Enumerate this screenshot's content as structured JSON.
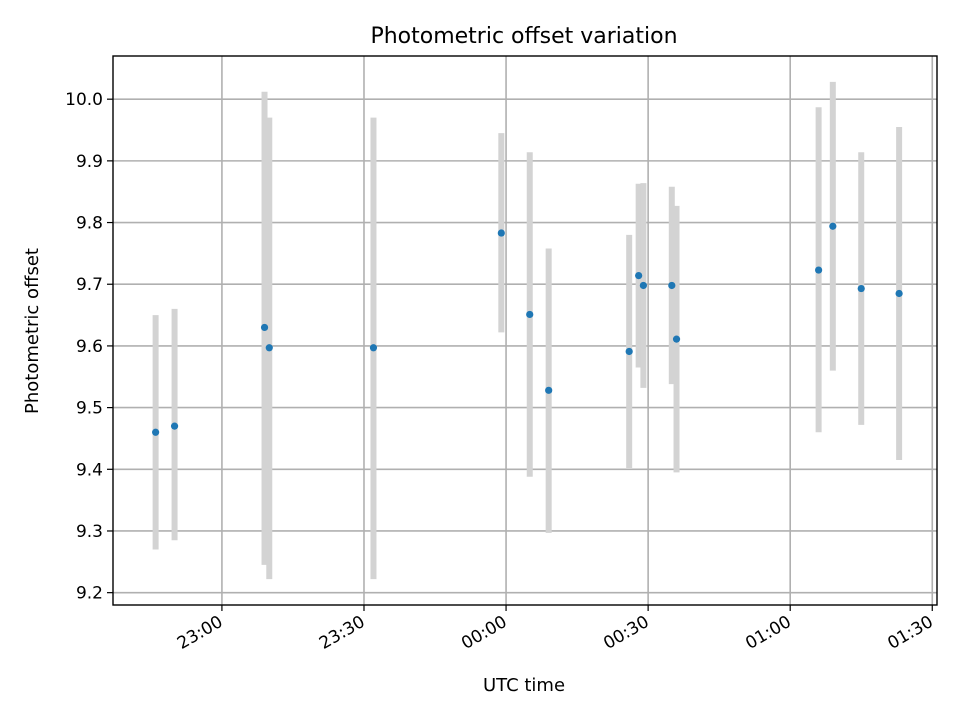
{
  "chart_data": {
    "type": "scatter",
    "title": "Photometric offset variation",
    "xlabel": "UTC time",
    "ylabel": "Photometric offset",
    "x_unit": "UTC time (clock, spanning midnight)",
    "xlim": [
      "22:37",
      "01:31"
    ],
    "ylim": [
      9.18,
      10.07
    ],
    "x_ticks": [
      "23:00",
      "23:30",
      "00:00",
      "00:30",
      "01:00",
      "01:30"
    ],
    "y_ticks": [
      "9.2",
      "9.3",
      "9.4",
      "9.5",
      "9.6",
      "9.7",
      "9.8",
      "9.9",
      "10.0"
    ],
    "grid": true,
    "marker_color": "#1f77b4",
    "errorbar_color": "#d3d3d3",
    "points": [
      {
        "t": "22:46",
        "y": 9.46,
        "low": 9.27,
        "high": 9.65
      },
      {
        "t": "22:50",
        "y": 9.47,
        "low": 9.285,
        "high": 9.66
      },
      {
        "t": "23:09",
        "y": 9.63,
        "low": 9.245,
        "high": 10.012
      },
      {
        "t": "23:10",
        "y": 9.597,
        "low": 9.222,
        "high": 9.97
      },
      {
        "t": "23:32",
        "y": 9.597,
        "low": 9.222,
        "high": 9.97
      },
      {
        "t": "23:59",
        "y": 9.783,
        "low": 9.622,
        "high": 9.945
      },
      {
        "t": "00:05",
        "y": 9.651,
        "low": 9.388,
        "high": 9.914
      },
      {
        "t": "00:09",
        "y": 9.528,
        "low": 9.297,
        "high": 9.758
      },
      {
        "t": "00:26",
        "y": 9.591,
        "low": 9.402,
        "high": 9.78
      },
      {
        "t": "00:28",
        "y": 9.714,
        "low": 9.565,
        "high": 9.863
      },
      {
        "t": "00:29",
        "y": 9.698,
        "low": 9.532,
        "high": 9.864
      },
      {
        "t": "00:35",
        "y": 9.698,
        "low": 9.538,
        "high": 9.858
      },
      {
        "t": "00:36",
        "y": 9.611,
        "low": 9.395,
        "high": 9.827
      },
      {
        "t": "01:06",
        "y": 9.723,
        "low": 9.46,
        "high": 9.987
      },
      {
        "t": "01:09",
        "y": 9.794,
        "low": 9.56,
        "high": 10.028
      },
      {
        "t": "01:15",
        "y": 9.693,
        "low": 9.472,
        "high": 9.914
      },
      {
        "t": "01:23",
        "y": 9.685,
        "low": 9.415,
        "high": 9.955
      }
    ]
  }
}
